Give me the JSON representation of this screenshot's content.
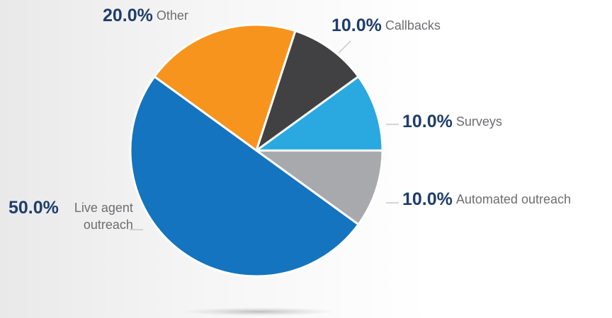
{
  "chart_data": {
    "type": "pie",
    "categories": [
      "Other",
      "Callbacks",
      "Surveys",
      "Automated outreach",
      "Live agent outreach"
    ],
    "values": [
      20,
      10,
      10,
      10,
      50
    ],
    "value_labels": [
      "20.0%",
      "10.0%",
      "10.0%",
      "10.0%",
      "50.0%"
    ],
    "colors": [
      "#f7941d",
      "#414042",
      "#29a9e0",
      "#a7a9ac",
      "#1474bf"
    ]
  }
}
